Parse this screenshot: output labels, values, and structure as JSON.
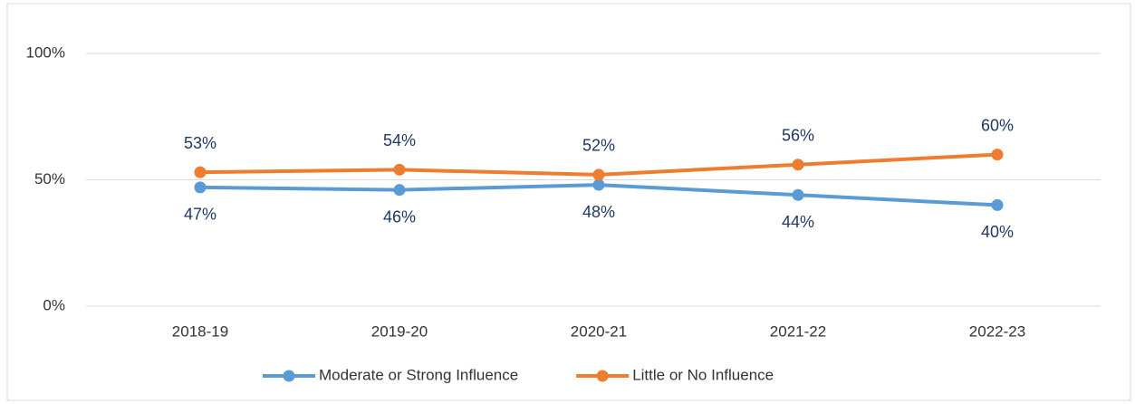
{
  "chart_data": {
    "type": "line",
    "categories": [
      "2018-19",
      "2019-20",
      "2020-21",
      "2021-22",
      "2022-23"
    ],
    "series": [
      {
        "name": "Moderate or Strong Influence",
        "color": "#5b9bd5",
        "values": [
          47,
          46,
          48,
          44,
          40
        ],
        "value_labels": [
          "47%",
          "46%",
          "48%",
          "44%",
          "40%"
        ]
      },
      {
        "name": "Little or No Influence",
        "color": "#ed7d31",
        "values": [
          53,
          54,
          52,
          56,
          60
        ],
        "value_labels": [
          "53%",
          "54%",
          "52%",
          "56%",
          "60%"
        ]
      }
    ],
    "ylim": [
      0,
      100
    ],
    "yticks": [
      {
        "value": 0,
        "label": "0%"
      },
      {
        "value": 50,
        "label": "50%"
      },
      {
        "value": 100,
        "label": "100%"
      }
    ],
    "grid": true
  }
}
